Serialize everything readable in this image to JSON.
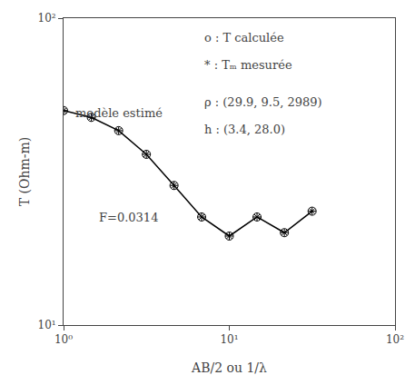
{
  "chart_data": {
    "type": "line",
    "xlabel": "AB/2 ou 1/λ",
    "ylabel": "T (Ohm-m)",
    "log": true,
    "grid": false,
    "x": [
      1.0,
      1.47,
      2.15,
      3.16,
      4.64,
      6.81,
      10.0,
      14.7,
      21.5,
      31.6
    ],
    "series": [
      {
        "type": "line",
        "marker": "circle-open",
        "color": "#000000",
        "values": [
          50.0,
          47.5,
          43.0,
          36.0,
          28.5,
          22.5,
          19.5,
          22.5,
          20.0,
          23.5
        ]
      },
      {
        "type": "scatter",
        "marker": "asterisk-open",
        "color": "#000000",
        "values": [
          50.0,
          47.5,
          43.0,
          36.0,
          28.5,
          22.5,
          19.5,
          22.5,
          20.0,
          23.5
        ]
      }
    ],
    "xlim": [
      1,
      100
    ],
    "ylim": [
      10,
      100
    ],
    "xticks": [
      {
        "value": 1,
        "label": "10⁰"
      },
      {
        "value": 10,
        "label": "10¹"
      },
      {
        "value": 100,
        "label": "10²"
      }
    ],
    "yticks": [
      {
        "value": 10,
        "label": "10¹"
      },
      {
        "value": 100,
        "label": "10²"
      }
    ],
    "annotations": [
      "o : T calculée",
      "* : Tₘ mesurée",
      "ρ : (29.9, 9.5, 2989)",
      "h : (3.4, 28.0)",
      "modèle estimé",
      "F=0.0314"
    ]
  }
}
